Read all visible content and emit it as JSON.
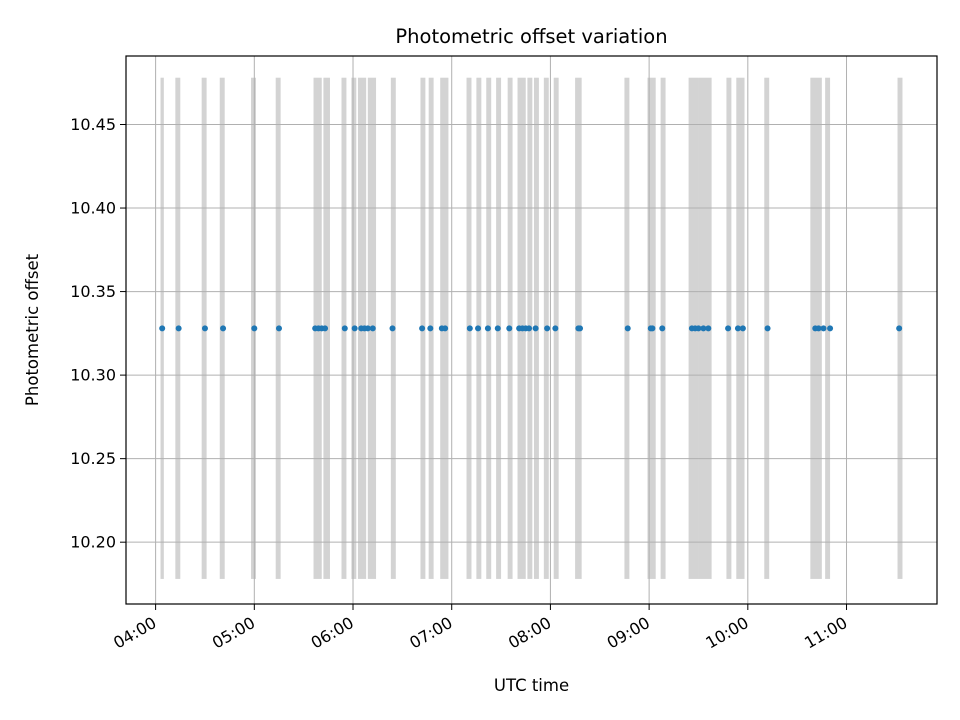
{
  "chart_data": {
    "type": "scatter",
    "title": "Photometric offset variation",
    "xlabel": "UTC time",
    "ylabel": "Photometric offset",
    "xlim": [
      "03:42",
      "11:55"
    ],
    "ylim": [
      10.163,
      10.491
    ],
    "grid": true,
    "colors": {
      "points": "#1f77b4",
      "bands": "#d3d3d3",
      "grid": "#b0b0b0"
    },
    "x_ticks": [
      "04:00",
      "05:00",
      "06:00",
      "07:00",
      "08:00",
      "09:00",
      "10:00",
      "11:00"
    ],
    "y_ticks": [
      "10.20",
      "10.25",
      "10.30",
      "10.35",
      "10.40",
      "10.45"
    ],
    "band_range": [
      10.178,
      10.478
    ],
    "bands": [
      [
        "04:03",
        "04:05"
      ],
      [
        "04:12",
        "04:15"
      ],
      [
        "04:28",
        "04:31"
      ],
      [
        "04:39",
        "04:42"
      ],
      [
        "04:58",
        "05:01"
      ],
      [
        "05:13",
        "05:16"
      ],
      [
        "05:36",
        "05:41"
      ],
      [
        "05:42",
        "05:46"
      ],
      [
        "05:53",
        "05:56"
      ],
      [
        "05:59",
        "06:02"
      ],
      [
        "06:03",
        "06:08"
      ],
      [
        "06:09",
        "06:14"
      ],
      [
        "06:23",
        "06:26"
      ],
      [
        "06:41",
        "06:44"
      ],
      [
        "06:46",
        "06:49"
      ],
      [
        "06:53",
        "06:58"
      ],
      [
        "07:09",
        "07:12"
      ],
      [
        "07:15",
        "07:18"
      ],
      [
        "07:21",
        "07:24"
      ],
      [
        "07:27",
        "07:30"
      ],
      [
        "07:34",
        "07:37"
      ],
      [
        "07:40",
        "07:45"
      ],
      [
        "07:46",
        "07:49"
      ],
      [
        "07:50",
        "07:53"
      ],
      [
        "07:56",
        "07:59"
      ],
      [
        "08:02",
        "08:05"
      ],
      [
        "08:15",
        "08:19"
      ],
      [
        "08:45",
        "08:48"
      ],
      [
        "08:59",
        "09:04"
      ],
      [
        "09:07",
        "09:10"
      ],
      [
        "09:24",
        "09:30"
      ],
      [
        "09:30",
        "09:38"
      ],
      [
        "09:47",
        "09:50"
      ],
      [
        "09:53",
        "09:58"
      ],
      [
        "10:10",
        "10:13"
      ],
      [
        "10:38",
        "10:45"
      ],
      [
        "10:47",
        "10:50"
      ],
      [
        "11:31",
        "11:34"
      ]
    ],
    "x": [
      "04:04",
      "04:14",
      "04:30",
      "04:41",
      "05:00",
      "05:15",
      "05:37",
      "05:39",
      "05:41",
      "05:43",
      "05:55",
      "06:01",
      "06:05",
      "06:07",
      "06:09",
      "06:12",
      "06:24",
      "06:42",
      "06:47",
      "06:54",
      "06:56",
      "07:11",
      "07:16",
      "07:22",
      "07:28",
      "07:35",
      "07:41",
      "07:43",
      "07:45",
      "07:47",
      "07:51",
      "07:58",
      "08:03",
      "08:17",
      "08:18",
      "08:47",
      "09:01",
      "09:02",
      "09:08",
      "09:26",
      "09:28",
      "09:30",
      "09:33",
      "09:36",
      "09:48",
      "09:54",
      "09:57",
      "10:12",
      "10:41",
      "10:43",
      "10:46",
      "10:50",
      "11:32"
    ],
    "y": 10.328
  }
}
